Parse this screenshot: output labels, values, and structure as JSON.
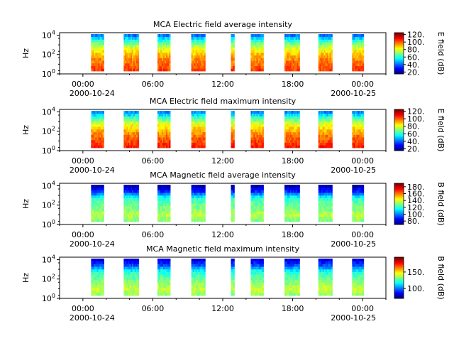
{
  "figure": {
    "background": "#ffffff"
  },
  "chart_data": [
    {
      "type": "heatmap",
      "title": "MCA  Electric field average intensity",
      "ylabel": "Hz",
      "colorbar_label": "E field (dB)",
      "colorbar_ticks": [
        "20.",
        "40.",
        "60.",
        "80.",
        "100.",
        "120."
      ],
      "colorbar_range": [
        15,
        125
      ],
      "y_scale": "log",
      "y_ticks": [
        "10^0",
        "10^2",
        "10^4"
      ],
      "x_ticks": [
        "00:00",
        "06:00",
        "12:00",
        "18:00",
        "00:00"
      ],
      "x_date_labels": [
        "2000-10-24",
        "2000-10-25"
      ],
      "x_range_hours": [
        -2,
        26
      ],
      "data_segments_hours": [
        [
          0.7,
          1.8
        ],
        [
          3.5,
          4.8
        ],
        [
          6.4,
          7.5
        ],
        [
          9.3,
          10.5
        ],
        [
          12.7,
          13.0
        ],
        [
          14.4,
          15.5
        ],
        [
          17.3,
          18.6
        ],
        [
          20.2,
          21.4
        ],
        [
          23.1,
          24.1
        ]
      ],
      "profile_db_low_to_high_freq": [
        105,
        100,
        96,
        88,
        78,
        62,
        42
      ]
    },
    {
      "type": "heatmap",
      "title": "MCA  Electric field maximum intensity",
      "ylabel": "Hz",
      "colorbar_label": "E field (dB)",
      "colorbar_ticks": [
        "20.",
        "40.",
        "60.",
        "80.",
        "100.",
        "120."
      ],
      "colorbar_range": [
        15,
        125
      ],
      "y_scale": "log",
      "y_ticks": [
        "10^0",
        "10^2",
        "10^4"
      ],
      "x_ticks": [
        "00:00",
        "06:00",
        "12:00",
        "18:00",
        "00:00"
      ],
      "x_date_labels": [
        "2000-10-24",
        "2000-10-25"
      ],
      "x_range_hours": [
        -2,
        26
      ],
      "data_segments_hours": [
        [
          0.7,
          1.8
        ],
        [
          3.5,
          4.8
        ],
        [
          6.4,
          7.5
        ],
        [
          9.3,
          10.5
        ],
        [
          12.7,
          13.0
        ],
        [
          14.4,
          15.5
        ],
        [
          17.3,
          18.6
        ],
        [
          20.2,
          21.4
        ],
        [
          23.1,
          24.1
        ]
      ],
      "profile_db_low_to_high_freq": [
        108,
        103,
        98,
        90,
        80,
        64,
        44
      ]
    },
    {
      "type": "heatmap",
      "title": "MCA  Magnetic field average intensity",
      "ylabel": "Hz",
      "colorbar_label": "B field (dB)",
      "colorbar_ticks": [
        "80.",
        "100.",
        "120.",
        "140.",
        "160.",
        "180."
      ],
      "colorbar_range": [
        70,
        190
      ],
      "y_scale": "log",
      "y_ticks": [
        "10^0",
        "10^2",
        "10^4"
      ],
      "x_ticks": [
        "00:00",
        "06:00",
        "12:00",
        "18:00",
        "00:00"
      ],
      "x_date_labels": [
        "2000-10-24",
        "2000-10-25"
      ],
      "x_range_hours": [
        -2,
        26
      ],
      "data_segments_hours": [
        [
          0.7,
          1.8
        ],
        [
          3.5,
          4.8
        ],
        [
          6.4,
          7.5
        ],
        [
          9.3,
          10.5
        ],
        [
          12.7,
          13.0
        ],
        [
          14.4,
          15.5
        ],
        [
          17.3,
          18.6
        ],
        [
          20.2,
          21.4
        ],
        [
          23.1,
          24.1
        ]
      ],
      "profile_db_low_to_high_freq": [
        130,
        138,
        130,
        126,
        118,
        90,
        76
      ]
    },
    {
      "type": "heatmap",
      "title": "MCA  Magnetic field maximum intensity",
      "ylabel": "Hz",
      "colorbar_label": "B field (dB)",
      "colorbar_ticks": [
        "100.",
        "150."
      ],
      "colorbar_range": [
        70,
        195
      ],
      "y_scale": "log",
      "y_ticks": [
        "10^0",
        "10^2",
        "10^4"
      ],
      "x_ticks": [
        "00:00",
        "06:00",
        "12:00",
        "18:00",
        "00:00"
      ],
      "x_date_labels": [
        "2000-10-24",
        "2000-10-25"
      ],
      "x_range_hours": [
        -2,
        26
      ],
      "data_segments_hours": [
        [
          0.7,
          1.8
        ],
        [
          3.5,
          4.8
        ],
        [
          6.4,
          7.5
        ],
        [
          9.3,
          10.5
        ],
        [
          12.7,
          13.0
        ],
        [
          14.4,
          15.5
        ],
        [
          17.3,
          18.6
        ],
        [
          20.2,
          21.4
        ],
        [
          23.1,
          24.1
        ]
      ],
      "profile_db_low_to_high_freq": [
        135,
        142,
        134,
        128,
        120,
        96,
        82
      ]
    }
  ]
}
